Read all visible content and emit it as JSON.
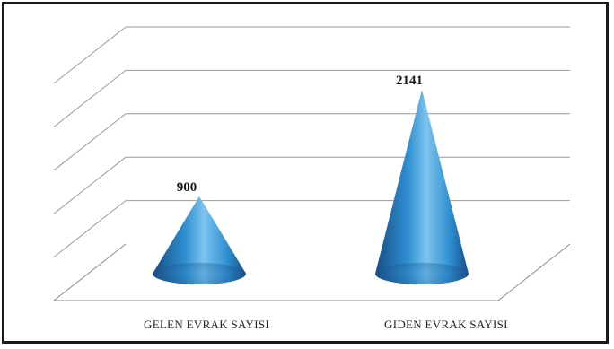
{
  "chart_data": {
    "type": "bar",
    "style": "3d-cone",
    "categories": [
      "GELEN EVRAK SAYISI",
      "GIDEN EVRAK SAYISI"
    ],
    "values": [
      900,
      2141
    ],
    "data_labels": [
      "900",
      "2141"
    ],
    "ylim": [
      0,
      2500
    ],
    "grid": true,
    "legend": "none",
    "colors": {
      "cone_light": "#7cc4ee",
      "cone_mid": "#2f8fd0",
      "cone_dark": "#174e86",
      "frame": "#1a1a1a",
      "grid": "#9a9a9a"
    }
  }
}
